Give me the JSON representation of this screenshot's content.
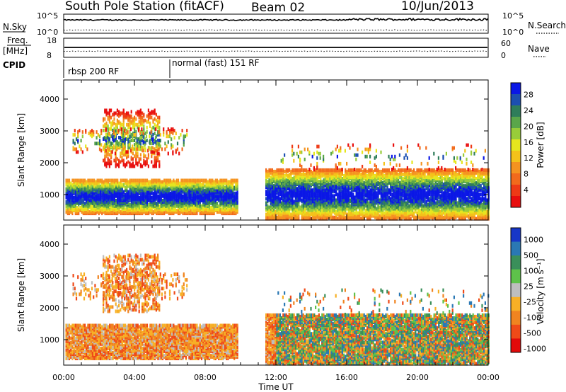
{
  "header": {
    "title": "South Pole Station (fitACF)",
    "beam": "Beam 02",
    "date": "10/Jun/2013"
  },
  "status_panels": {
    "sky_label": "N.Sky",
    "search_label": "N.Search",
    "sky_ticks": [
      "10^5",
      "10^0"
    ],
    "freq_label_line1": "Freq.",
    "freq_label_line2": "[MHz]",
    "freq_ticks": [
      "18",
      "8"
    ],
    "nave_label": "Nave",
    "nave_ticks": [
      "60",
      "0"
    ],
    "cpid_label": "CPID",
    "cpid_segments": [
      {
        "label": "rbsp 200 RF",
        "start_hour": 0.0
      },
      {
        "label": "normal (fast) 151 RF",
        "start_hour": 6.0
      }
    ]
  },
  "chart_data": [
    {
      "type": "heatmap",
      "name": "power",
      "xlabel": "Time UT",
      "ylabel": "Slant Range [km]",
      "x_range_hours": [
        0,
        24
      ],
      "y_range_km": [
        200,
        4600
      ],
      "y_ticks": [
        1000,
        2000,
        3000,
        4000
      ],
      "x_tick_labels": [
        "00:00",
        "04:00",
        "08:00",
        "12:00",
        "16:00",
        "20:00",
        "00:00"
      ],
      "colorbar": {
        "label": "Power [dB]",
        "ticks": [
          "28",
          "24",
          "20",
          "16",
          "12",
          "8",
          "4"
        ],
        "colors": [
          "#0a17e6",
          "#1c4fb0",
          "#2e7d5a",
          "#5aa64a",
          "#98cc3a",
          "#e6e61e",
          "#f4c21a",
          "#f59320",
          "#f26a1c",
          "#ee3a16",
          "#e80e0e"
        ]
      },
      "features": [
        {
          "t0": 0.1,
          "t1": 10.0,
          "r0": 450,
          "r1": 1400,
          "value": "high"
        },
        {
          "t0": 2.5,
          "t1": 5.5,
          "r0": 2000,
          "r1": 3600,
          "value": "medium"
        },
        {
          "t0": 11.5,
          "t1": 24.0,
          "r0": 300,
          "r1": 1800,
          "value": "high"
        }
      ]
    },
    {
      "type": "heatmap",
      "name": "velocity",
      "xlabel": "Time UT",
      "ylabel": "Slant Range [km]",
      "x_range_hours": [
        0,
        24
      ],
      "y_range_km": [
        200,
        4600
      ],
      "y_ticks": [
        1000,
        2000,
        3000,
        4000
      ],
      "x_tick_labels": [
        "00:00",
        "04:00",
        "08:00",
        "12:00",
        "16:00",
        "20:00",
        "00:00"
      ],
      "colorbar": {
        "label": "Velocity [m s⁻¹]",
        "ticks": [
          "1000",
          "500",
          "100",
          "25",
          "-25",
          "-100",
          "-500",
          "-1000"
        ],
        "colors": [
          "#1737c8",
          "#2a78b4",
          "#3a8f5a",
          "#5ec24a",
          "#bebebe",
          "#f7b026",
          "#f08420",
          "#ef4a18",
          "#e20a0a"
        ]
      }
    }
  ],
  "xlabel": "Time UT"
}
